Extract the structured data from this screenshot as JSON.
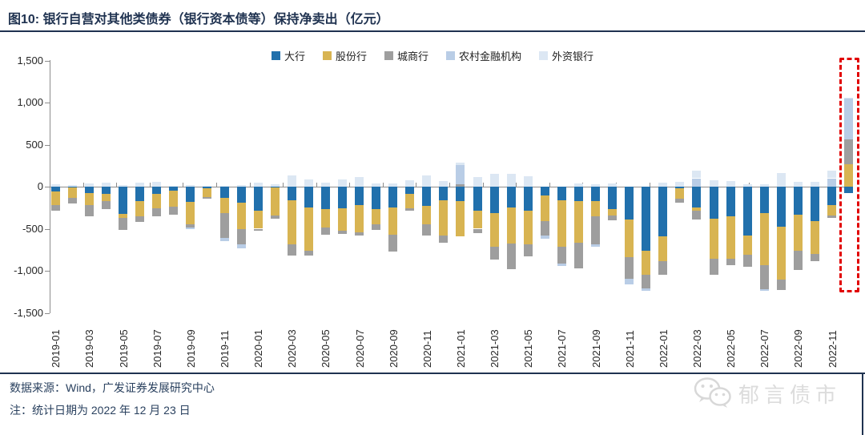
{
  "title": "图10:  银行自营对其他类债券（银行资本债等）保持净卖出（亿元）",
  "footer": {
    "source": "数据来源：Wind，广发证券发展研究中心",
    "note": "注：统计日期为 2022 年 12 月 23 日",
    "logo_text": "郁言债市"
  },
  "highlight": {
    "category": "2022-12",
    "style": "red-dashed-box",
    "color": "#E10000"
  },
  "colors": {
    "title": "#1F3250",
    "axis": "#8C8C8C",
    "watermark": "#DCDCDC"
  },
  "chart_data": {
    "type": "bar",
    "stacked": true,
    "unit": "亿元",
    "ylim": [
      -1500,
      1500
    ],
    "grid": false,
    "legend_position": "top",
    "y_tick_labels": [
      "1,500",
      "1,000",
      "500",
      "0",
      "-500",
      "-1,000",
      "-1,500"
    ],
    "y_tick_values": [
      1500,
      1000,
      500,
      0,
      -500,
      -1000,
      -1500
    ],
    "x_tick_labels": [
      "2019-01",
      "2019-03",
      "2019-05",
      "2019-07",
      "2019-09",
      "2019-11",
      "2020-01",
      "2020-03",
      "2020-05",
      "2020-07",
      "2020-09",
      "2020-11",
      "2021-01",
      "2021-03",
      "2021-05",
      "2021-07",
      "2021-09",
      "2021-11",
      "2022-01",
      "2022-03",
      "2022-05",
      "2022-07",
      "2022-09",
      "2022-11"
    ],
    "categories": [
      "2019-01",
      "2019-02",
      "2019-03",
      "2019-04",
      "2019-05",
      "2019-06",
      "2019-07",
      "2019-08",
      "2019-09",
      "2019-10",
      "2019-11",
      "2019-12",
      "2020-01",
      "2020-02",
      "2020-03",
      "2020-04",
      "2020-05",
      "2020-06",
      "2020-07",
      "2020-08",
      "2020-09",
      "2020-10",
      "2020-11",
      "2020-12",
      "2021-01",
      "2021-02",
      "2021-03",
      "2021-04",
      "2021-05",
      "2021-06",
      "2021-07",
      "2021-08",
      "2021-09",
      "2021-10",
      "2021-11",
      "2021-12",
      "2022-01",
      "2022-02",
      "2022-03",
      "2022-04",
      "2022-05",
      "2022-06",
      "2022-07",
      "2022-08",
      "2022-09",
      "2022-10",
      "2022-11",
      "2022-12"
    ],
    "series": [
      {
        "name": "大行",
        "color": "#2170AC",
        "values": [
          -60,
          -10,
          -75,
          -90,
          -320,
          -170,
          -90,
          -50,
          -185,
          -20,
          -135,
          -190,
          -285,
          -10,
          -160,
          -245,
          -265,
          -255,
          -215,
          -270,
          -245,
          -90,
          -230,
          -165,
          -175,
          -290,
          -310,
          -250,
          -285,
          -105,
          -165,
          -175,
          -175,
          -265,
          -395,
          -760,
          -595,
          -15,
          -245,
          -380,
          -350,
          -585,
          -310,
          -475,
          -330,
          -405,
          -220,
          -80
        ]
      },
      {
        "name": "股份行",
        "color": "#D8B452",
        "values": [
          -160,
          -125,
          -145,
          -85,
          -55,
          -185,
          -170,
          -190,
          -265,
          -105,
          -175,
          -315,
          -215,
          -330,
          -530,
          -520,
          -220,
          -270,
          -325,
          -175,
          -325,
          -170,
          -220,
          -420,
          -420,
          -210,
          -400,
          -430,
          -405,
          -300,
          -545,
          -490,
          -175,
          -80,
          -445,
          -285,
          -290,
          -125,
          -40,
          -475,
          -505,
          -220,
          -625,
          -625,
          -430,
          -395,
          -120,
          265
        ]
      },
      {
        "name": "城商行",
        "color": "#9E9E9E",
        "values": [
          -70,
          -65,
          -135,
          -90,
          -135,
          -65,
          -95,
          -95,
          -40,
          -20,
          -300,
          -185,
          -20,
          -40,
          -125,
          -55,
          -85,
          -40,
          -40,
          -70,
          -205,
          -30,
          -135,
          -80,
          30,
          -55,
          -160,
          -300,
          -135,
          -180,
          -200,
          -310,
          -340,
          -55,
          -255,
          -165,
          -160,
          -55,
          -110,
          -190,
          -80,
          -145,
          -285,
          -130,
          -235,
          -85,
          -30,
          300
        ]
      },
      {
        "name": "农村金融机构",
        "color": "#B9CDE6",
        "values": [
          0,
          0,
          0,
          0,
          0,
          0,
          0,
          0,
          -15,
          0,
          -40,
          -40,
          0,
          0,
          0,
          0,
          0,
          0,
          0,
          0,
          0,
          0,
          0,
          0,
          225,
          0,
          0,
          0,
          0,
          -30,
          -30,
          0,
          -20,
          0,
          -65,
          -30,
          0,
          0,
          100,
          0,
          0,
          0,
          -15,
          0,
          0,
          0,
          100,
          480
        ]
      },
      {
        "name": "外资银行",
        "color": "#DCE7F3",
        "values": [
          30,
          20,
          40,
          45,
          15,
          45,
          55,
          10,
          15,
          10,
          10,
          15,
          45,
          25,
          130,
          85,
          45,
          85,
          110,
          40,
          40,
          80,
          135,
          70,
          30,
          110,
          150,
          150,
          120,
          0,
          0,
          40,
          30,
          40,
          0,
          0,
          45,
          55,
          90,
          80,
          70,
          30,
          25,
          165,
          55,
          55,
          90,
          10
        ]
      }
    ]
  }
}
